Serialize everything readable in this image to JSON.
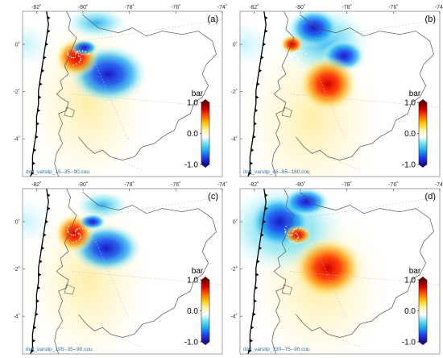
{
  "chart_data": [
    {
      "type": "heatmap",
      "panel_label": "(a)",
      "file_label": "dcff_varslip_15--35--90.cou",
      "x_ticks": [
        "-82˚",
        "-80˚",
        "-78˚",
        "-76˚",
        "-74˚"
      ],
      "y_ticks": [
        "0˚",
        "-2˚",
        "-4˚"
      ],
      "x_range": [
        -82.6,
        -74
      ],
      "y_range": [
        -5.6,
        1.4
      ],
      "colorbar": {
        "title": "bar",
        "ticks": [
          "1.0",
          "0.0",
          "-1.0"
        ],
        "range": [
          -1,
          1
        ]
      },
      "pattern": "a"
    },
    {
      "type": "heatmap",
      "panel_label": "(b)",
      "file_label": "dcff_varslip_46--85--180.cou",
      "x_ticks": [
        "-82˚",
        "-80˚",
        "-78˚",
        "-76˚",
        "-74˚"
      ],
      "y_ticks": [
        "0˚",
        "-2˚",
        "-4˚"
      ],
      "x_range": [
        -82.6,
        -74
      ],
      "y_range": [
        -5.6,
        1.4
      ],
      "colorbar": {
        "title": "bar",
        "ticks": [
          "1.0",
          "0.0",
          "-1.0"
        ],
        "range": [
          -1,
          1
        ]
      },
      "pattern": "b"
    },
    {
      "type": "heatmap",
      "panel_label": "(c)",
      "file_label": "dcff_varslip_195--35--90.cou",
      "x_ticks": [
        "-82˚",
        "-80˚",
        "-78˚",
        "-76˚",
        "-74˚"
      ],
      "y_ticks": [
        "0˚",
        "-2˚",
        "-4˚"
      ],
      "x_range": [
        -82.6,
        -74
      ],
      "y_range": [
        -5.6,
        1.4
      ],
      "colorbar": {
        "title": "bar",
        "ticks": [
          "1.0",
          "0.0",
          "-1.0"
        ],
        "range": [
          -1,
          1
        ]
      },
      "pattern": "c"
    },
    {
      "type": "heatmap",
      "panel_label": "(d)",
      "file_label": "dcff_varslip_330--75--90.cou",
      "x_ticks": [
        "-82˚",
        "-80˚",
        "-78˚",
        "-76˚",
        "-74˚"
      ],
      "y_ticks": [
        "0˚",
        "-2˚",
        "-4˚"
      ],
      "x_range": [
        -82.6,
        -74
      ],
      "y_range": [
        -5.6,
        1.4
      ],
      "colorbar": {
        "title": "bar",
        "ticks": [
          "1.0",
          "0.0",
          "-1.0"
        ],
        "range": [
          -1,
          1
        ]
      },
      "pattern": "d"
    }
  ],
  "colors": {
    "scale": [
      "#1a0a8c",
      "#1f3cf0",
      "#18a8f0",
      "#6ee0f0",
      "#ffffff",
      "#fff4a0",
      "#ffc400",
      "#ff5a00",
      "#d40000",
      "#6a0000"
    ],
    "coast": "#555555",
    "trench": "#000000",
    "filename": "#2b6da8"
  }
}
